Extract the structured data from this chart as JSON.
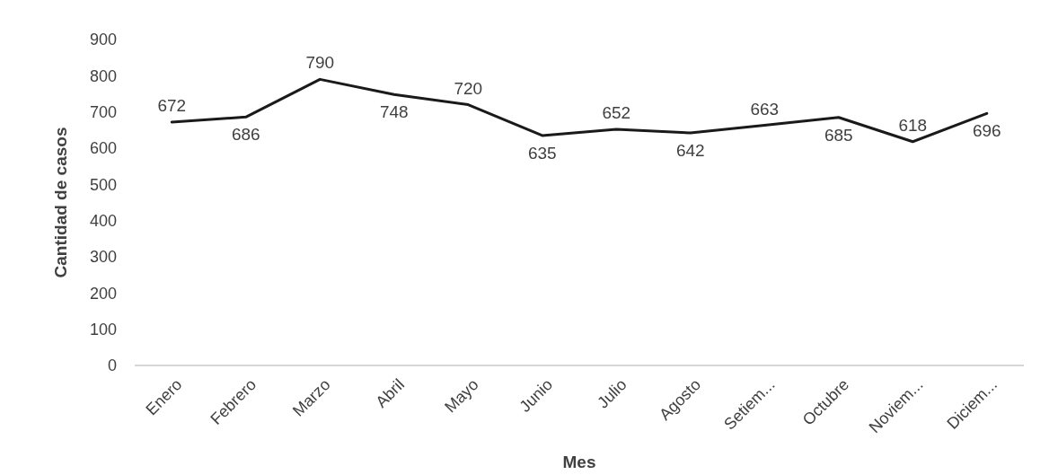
{
  "chart_data": {
    "type": "line",
    "xlabel": "Mes",
    "ylabel": "Cantidad de casos",
    "categories": [
      "Enero",
      "Febrero",
      "Marzo",
      "Abril",
      "Mayo",
      "Junio",
      "Julio",
      "Agosto",
      "Setiem...",
      "Octubre",
      "Noviem...",
      "Diciem..."
    ],
    "series": [
      {
        "color": "#1a1a1a",
        "values": [
          672,
          686,
          790,
          748,
          720,
          635,
          652,
          642,
          663,
          685,
          618,
          696
        ]
      }
    ],
    "ylim": [
      0,
      900
    ],
    "yticks": [
      0,
      100,
      200,
      300,
      400,
      500,
      600,
      700,
      800,
      900
    ],
    "grid": false,
    "data_labels": true,
    "marker": "none",
    "line_style": "solid"
  }
}
